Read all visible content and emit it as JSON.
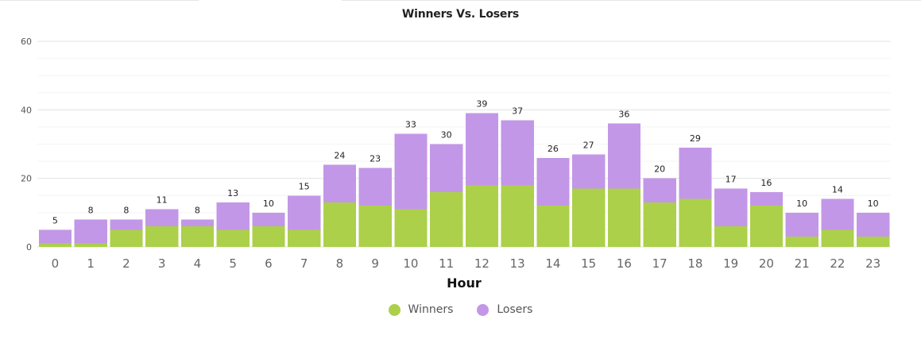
{
  "chart_data": {
    "type": "bar",
    "stacked": true,
    "title": "Winners Vs. Losers",
    "xlabel": "Hour",
    "ylabel": "",
    "ylim": [
      0,
      60
    ],
    "yticks": [
      0,
      20,
      40,
      60
    ],
    "grid": true,
    "legend_position": "bottom-center",
    "categories": [
      "0",
      "1",
      "2",
      "3",
      "4",
      "5",
      "6",
      "7",
      "8",
      "9",
      "10",
      "11",
      "12",
      "13",
      "14",
      "15",
      "16",
      "17",
      "18",
      "19",
      "20",
      "21",
      "22",
      "23"
    ],
    "series": [
      {
        "name": "Winners",
        "color": "#acd04a",
        "values": [
          1,
          1,
          5,
          6,
          6,
          5,
          6,
          5,
          13,
          12,
          11,
          16,
          18,
          18,
          12,
          17,
          17,
          13,
          14,
          6,
          12,
          3,
          5,
          3
        ]
      },
      {
        "name": "Losers",
        "color": "#c397e7",
        "values": [
          4,
          7,
          3,
          5,
          2,
          8,
          4,
          10,
          11,
          11,
          22,
          14,
          21,
          19,
          14,
          10,
          19,
          7,
          15,
          11,
          4,
          7,
          9,
          7
        ]
      }
    ],
    "totals": [
      5,
      8,
      8,
      11,
      8,
      13,
      10,
      15,
      24,
      23,
      33,
      30,
      39,
      37,
      26,
      27,
      36,
      20,
      29,
      17,
      16,
      10,
      14,
      10
    ]
  }
}
